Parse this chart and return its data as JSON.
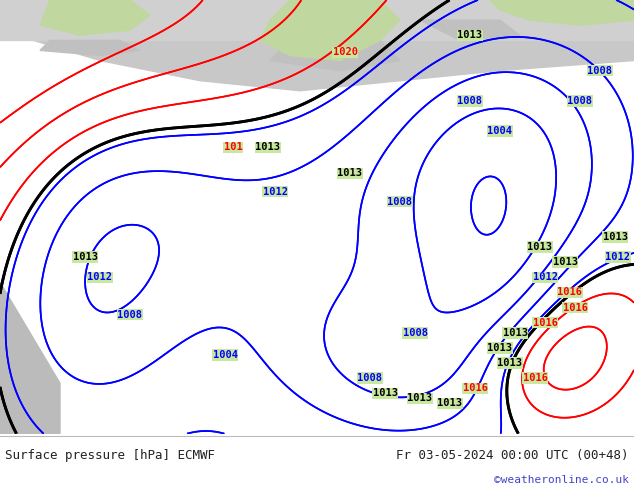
{
  "title_left": "Surface pressure [hPa] ECMWF",
  "title_right": "Fr 03-05-2024 00:00 UTC (00+48)",
  "credit": "©weatheronline.co.uk",
  "text_color": "#222222",
  "credit_color": "#4444cc",
  "font_size_title": 9,
  "font_size_credit": 8,
  "map_bg": "#c8e8a0",
  "sea_color": "#c8c8c8",
  "footer_line_color": "#aaaaaa"
}
